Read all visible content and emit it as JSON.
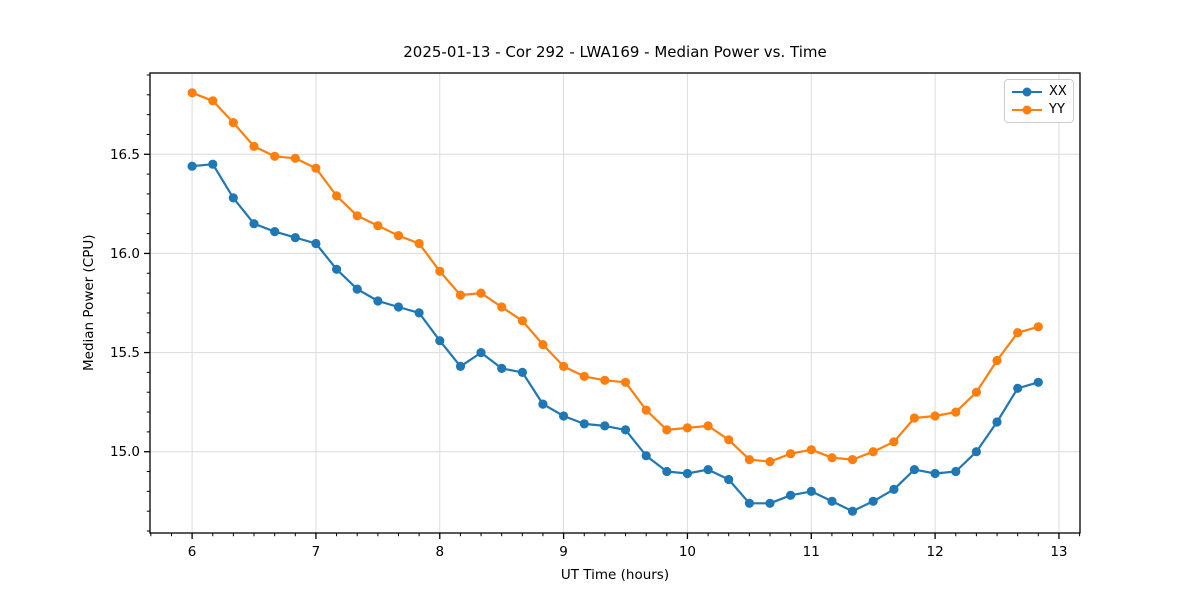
{
  "chart_data": {
    "type": "line",
    "title": "2025-01-13 - Cor 292 - LWA169 - Median Power vs. Time",
    "xlabel": "UT Time (hours)",
    "ylabel": "Median Power (CPU)",
    "xlim": [
      5.66,
      13.17
    ],
    "ylim": [
      14.59,
      16.91
    ],
    "grid": true,
    "grid_color": "#dcdcdc",
    "legend_position": "upper right",
    "marker": "o",
    "x_major_ticks": [
      6,
      7,
      8,
      9,
      10,
      11,
      12,
      13
    ],
    "x_tick_labels": [
      "6",
      "7",
      "8",
      "9",
      "10",
      "11",
      "12",
      "13"
    ],
    "y_major_ticks": [
      15.0,
      15.5,
      16.0,
      16.5
    ],
    "y_tick_labels": [
      "15.0",
      "15.5",
      "16.0",
      "16.5"
    ],
    "x_minor_step": 0.1667,
    "y_minor_step": 0.1,
    "x": [
      6.0,
      6.167,
      6.333,
      6.5,
      6.667,
      6.833,
      7.0,
      7.167,
      7.333,
      7.5,
      7.667,
      7.833,
      8.0,
      8.167,
      8.333,
      8.5,
      8.667,
      8.833,
      9.0,
      9.167,
      9.333,
      9.5,
      9.667,
      9.833,
      10.0,
      10.167,
      10.333,
      10.5,
      10.667,
      10.833,
      11.0,
      11.167,
      11.333,
      11.5,
      11.667,
      11.833,
      12.0,
      12.167,
      12.333,
      12.5,
      12.667,
      12.833
    ],
    "series": [
      {
        "name": "XX",
        "color": "#1f77b4",
        "values": [
          16.44,
          16.45,
          16.28,
          16.15,
          16.11,
          16.08,
          16.05,
          15.92,
          15.82,
          15.76,
          15.73,
          15.7,
          15.56,
          15.43,
          15.5,
          15.42,
          15.4,
          15.24,
          15.18,
          15.14,
          15.13,
          15.11,
          14.98,
          14.9,
          14.89,
          14.91,
          14.86,
          14.74,
          14.74,
          14.78,
          14.8,
          14.75,
          14.7,
          14.75,
          14.81,
          14.91,
          14.89,
          14.9,
          15.0,
          15.15,
          15.32,
          15.35
        ]
      },
      {
        "name": "YY",
        "color": "#ff7f0e",
        "values": [
          16.81,
          16.77,
          16.66,
          16.54,
          16.49,
          16.48,
          16.43,
          16.29,
          16.19,
          16.14,
          16.09,
          16.05,
          15.91,
          15.79,
          15.8,
          15.73,
          15.66,
          15.54,
          15.43,
          15.38,
          15.36,
          15.35,
          15.21,
          15.11,
          15.12,
          15.13,
          15.06,
          14.96,
          14.95,
          14.99,
          15.01,
          14.97,
          14.96,
          15.0,
          15.05,
          15.17,
          15.18,
          15.2,
          15.3,
          15.46,
          15.6,
          15.63
        ]
      }
    ]
  }
}
